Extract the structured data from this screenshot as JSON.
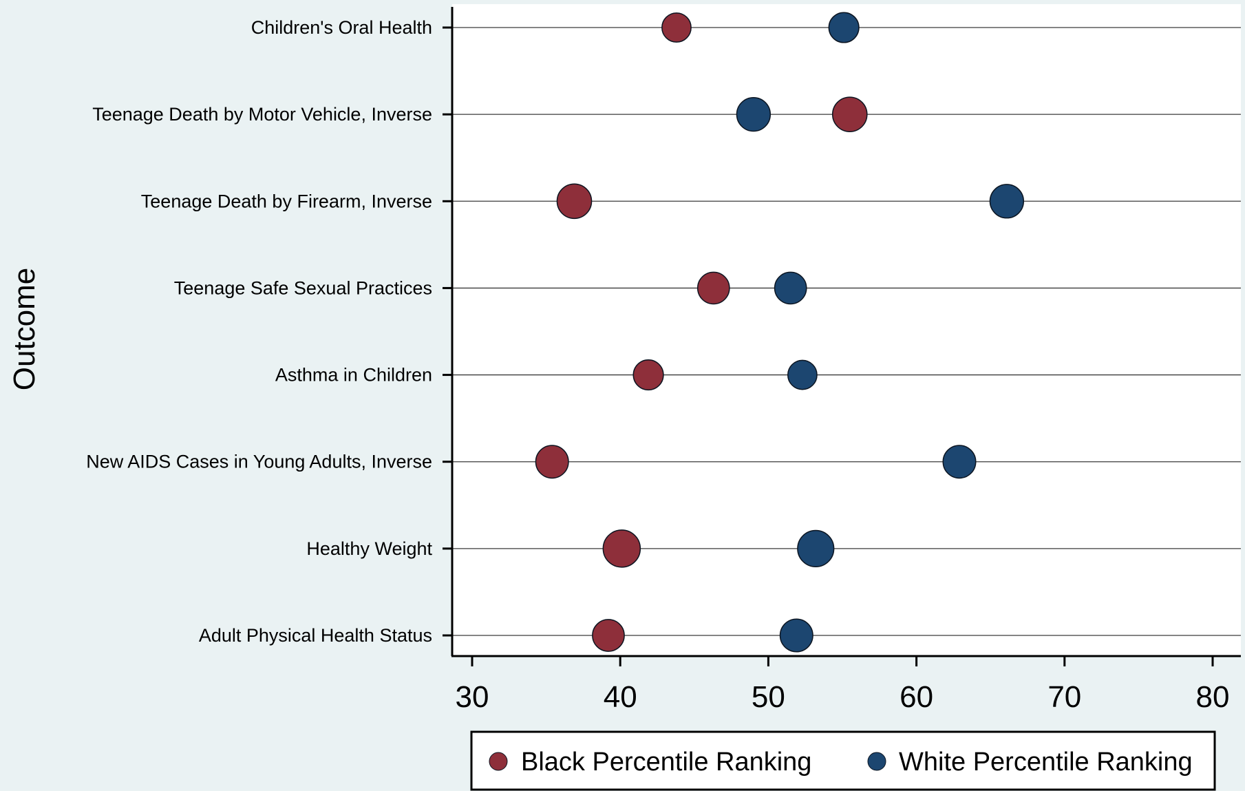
{
  "chart_data": {
    "type": "scatter",
    "title": "",
    "xlabel": "",
    "ylabel": "Outcome",
    "xlim": [
      30,
      80
    ],
    "xticks": [
      "30",
      "40",
      "50",
      "60",
      "70",
      "80"
    ],
    "xtick_values": [
      30,
      40,
      50,
      60,
      70,
      80
    ],
    "categories": [
      "Children's Oral Health",
      "Teenage Death by Motor Vehicle, Inverse",
      "Teenage Death by Firearm, Inverse",
      "Teenage Safe Sexual Practices",
      "Asthma in Children",
      "New AIDS Cases in Young Adults, Inverse",
      "Healthy Weight",
      "Adult Physical Health Status"
    ],
    "series": [
      {
        "name": "Black Percentile Ranking",
        "color": "#8e2f3a",
        "values": [
          43.8,
          55.5,
          36.9,
          46.3,
          41.9,
          35.4,
          40.1,
          39.2
        ],
        "marker_weight": [
          0.55,
          0.85,
          0.85,
          0.7,
          0.6,
          0.75,
          1.0,
          0.7
        ]
      },
      {
        "name": "White Percentile Ranking",
        "color": "#1c4670",
        "values": [
          55.1,
          49.0,
          66.1,
          51.5,
          52.3,
          62.9,
          53.2,
          51.9
        ],
        "marker_weight": [
          0.6,
          0.8,
          0.8,
          0.7,
          0.55,
          0.75,
          0.95,
          0.75
        ]
      }
    ],
    "legend_position": "bottom",
    "grid": "horizontal lines per category"
  }
}
